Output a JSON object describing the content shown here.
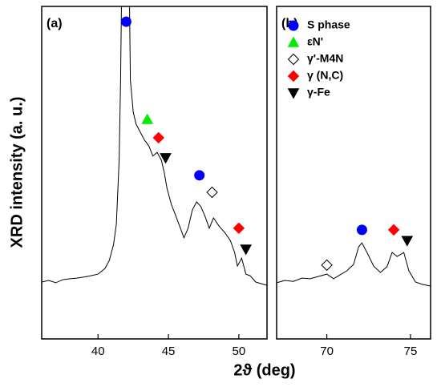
{
  "y_label": "XRD intensity (a. u.)",
  "x_label": "2ϑ (deg)",
  "markers": [
    {
      "name": "S phase",
      "color": "#0000ff",
      "shape": "circle"
    },
    {
      "name": "εN'",
      "color": "#00ee00",
      "shape": "triangle-up"
    },
    {
      "name": "γ'-M4N",
      "color": "#ffffff",
      "shape": "diamond"
    },
    {
      "name": "γ (N,C)",
      "color": "#ff0000",
      "shape": "diamond"
    },
    {
      "name": "γ-Fe",
      "color": "#000000",
      "shape": "triangle-down"
    }
  ],
  "chart_data": [
    {
      "type": "line",
      "panel": "(a)",
      "color": "#000000",
      "xlim": [
        36,
        52
      ],
      "xticks": [
        40,
        45,
        50
      ],
      "ylim": [
        0,
        100
      ],
      "x": [
        36,
        36.5,
        37,
        37.5,
        38,
        38.5,
        39,
        39.5,
        40,
        40.5,
        40.8,
        41.1,
        41.3,
        41.5,
        41.6,
        41.7,
        42.2,
        42.3,
        42.5,
        42.7,
        43,
        43.3,
        43.6,
        43.9,
        44.2,
        44.5,
        44.7,
        44.9,
        45.2,
        45.5,
        45.8,
        46.1,
        46.4,
        46.7,
        47,
        47.3,
        47.6,
        47.9,
        48.2,
        48.6,
        49,
        49.4,
        49.7,
        49.9,
        50.2,
        50.5,
        50.8,
        51.2,
        51.6,
        52
      ],
      "values": [
        17.1,
        17.6,
        16.9,
        17.8,
        18.1,
        18.3,
        18.6,
        19.0,
        19.5,
        21.2,
        23.6,
        28.4,
        34.5,
        53.7,
        77.8,
        114,
        114,
        77.8,
        68.2,
        64.6,
        62.2,
        59.8,
        58.1,
        55.0,
        56.1,
        53.7,
        50.1,
        45.3,
        40.5,
        37.3,
        33.9,
        30.4,
        33.3,
        38.8,
        41.2,
        39.8,
        36.9,
        33.3,
        36.4,
        33.9,
        32.0,
        29.6,
        26.0,
        21.9,
        24.3,
        19.5,
        19.0,
        17.1,
        16.6,
        16.1
      ],
      "points": [
        {
          "marker": 0,
          "x": 42.0,
          "y": 95.4
        },
        {
          "marker": 1,
          "x": 43.5,
          "y": 66.0
        },
        {
          "marker": 3,
          "x": 44.3,
          "y": 60.5
        },
        {
          "marker": 4,
          "x": 44.8,
          "y": 54.5
        },
        {
          "marker": 0,
          "x": 47.2,
          "y": 49.2
        },
        {
          "marker": 2,
          "x": 48.1,
          "y": 44.1
        },
        {
          "marker": 3,
          "x": 50.0,
          "y": 33.3
        },
        {
          "marker": 4,
          "x": 50.5,
          "y": 27.0
        }
      ]
    },
    {
      "type": "line",
      "panel": "(b)",
      "color": "#000000",
      "xlim": [
        67,
        76.2
      ],
      "xticks": [
        70,
        75
      ],
      "ylim": [
        0,
        100
      ],
      "legend": "upper right",
      "x": [
        67,
        67.5,
        68,
        68.5,
        69,
        69.5,
        70,
        70.4,
        70.8,
        71.2,
        71.6,
        71.9,
        72.1,
        72.4,
        72.8,
        73.2,
        73.6,
        73.9,
        74.2,
        74.6,
        74.9,
        75.3,
        75.7,
        76.2
      ],
      "values": [
        16.9,
        17.6,
        17.3,
        18.3,
        18.1,
        18.8,
        19.5,
        18.1,
        19.3,
        20.5,
        22.4,
        27.7,
        28.9,
        26.0,
        21.9,
        20.0,
        21.7,
        26.0,
        24.8,
        26.0,
        20.5,
        17.1,
        16.4,
        15.9
      ],
      "points": [
        {
          "marker": 2,
          "x": 70.0,
          "y": 22.2
        },
        {
          "marker": 0,
          "x": 72.1,
          "y": 32.8
        },
        {
          "marker": 3,
          "x": 74.0,
          "y": 32.8
        },
        {
          "marker": 4,
          "x": 74.8,
          "y": 29.6
        }
      ]
    }
  ]
}
